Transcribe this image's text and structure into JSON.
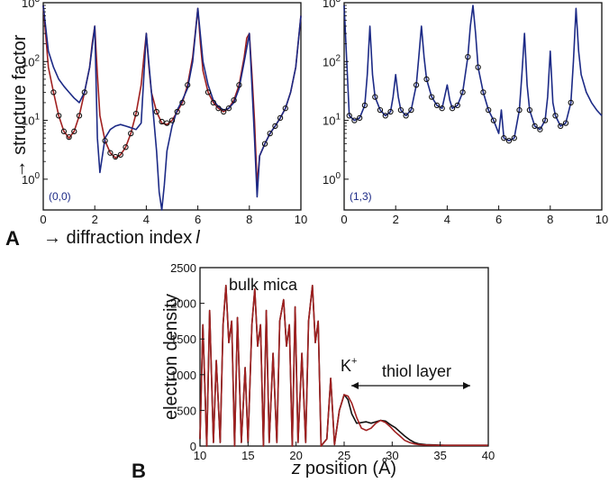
{
  "panel_a_letter": "A",
  "panel_b_letter": "B",
  "shared_ylabel": "→ structure factor",
  "shared_xlabel": "→ diffraction index",
  "shared_xlabel_var": "l",
  "colors": {
    "fit_red": "#a02020",
    "fit_blue": "#1c2a86",
    "data_marker": "#111111",
    "curve_black": "#111111"
  },
  "chart_data": [
    {
      "type": "line",
      "panel": "A-left",
      "annotation": "(0,0)",
      "xlim": [
        0,
        10
      ],
      "ylim": [
        0.3,
        1000
      ],
      "yscale": "log",
      "x_ticks": [
        "0",
        "2",
        "4",
        "6",
        "8",
        "10"
      ],
      "y_ticks": [
        {
          "base": "10",
          "exp": "0"
        },
        {
          "base": "10",
          "exp": "1"
        },
        {
          "base": "10",
          "exp": "2"
        },
        {
          "base": "10",
          "exp": "3"
        }
      ],
      "series": [
        {
          "color": "#a02020",
          "x": [
            0.0,
            0.2,
            0.4,
            0.6,
            0.8,
            1.0,
            1.2,
            1.4,
            1.6,
            1.8,
            1.9,
            2.0,
            2.1,
            2.2,
            2.4,
            2.6,
            2.8,
            3.0,
            3.2,
            3.4,
            3.6,
            3.8,
            3.9,
            4.0,
            4.1,
            4.2,
            4.4,
            4.6,
            4.8,
            5.0,
            5.2,
            5.4,
            5.6,
            5.8,
            5.9,
            6.0,
            6.1,
            6.2,
            6.4,
            6.6,
            6.8,
            7.0,
            7.2,
            7.4,
            7.6,
            7.8,
            7.9,
            8.0,
            8.1,
            8.2,
            8.3,
            8.4,
            8.6,
            8.8,
            9.0,
            9.2,
            9.4,
            9.6,
            9.8,
            10.0
          ],
          "y": [
            900,
            80,
            30,
            12,
            6.5,
            5.0,
            6.5,
            12,
            30,
            80,
            200,
            400,
            60,
            12,
            4.5,
            2.8,
            2.3,
            2.6,
            3.5,
            6,
            13,
            40,
            110,
            300,
            80,
            30,
            14,
            9,
            8.5,
            10,
            14,
            20,
            40,
            120,
            300,
            800,
            200,
            70,
            30,
            20,
            16,
            14,
            16,
            22,
            40,
            120,
            250,
            300,
            60,
            10,
            0.8,
            2.5,
            4,
            6,
            8,
            11,
            16,
            30,
            80,
            600
          ]
        },
        {
          "color": "#1c2a86",
          "x": [
            0.0,
            0.2,
            0.4,
            0.6,
            0.8,
            1.0,
            1.2,
            1.4,
            1.6,
            1.8,
            2.0,
            2.1,
            2.2,
            2.4,
            2.6,
            2.8,
            3.0,
            3.2,
            3.4,
            3.6,
            3.8,
            4.0,
            4.2,
            4.4,
            4.5,
            4.6,
            4.7,
            4.8,
            5.0,
            5.2,
            5.4,
            5.6,
            5.8,
            6.0,
            6.2,
            6.4,
            6.6,
            6.8,
            7.0,
            7.2,
            7.4,
            7.6,
            7.8,
            8.0,
            8.2,
            8.3,
            8.4,
            8.6,
            8.8,
            9.0,
            9.2,
            9.4,
            9.6,
            9.8,
            10.0
          ],
          "y": [
            900,
            150,
            80,
            50,
            38,
            30,
            24,
            20,
            30,
            80,
            400,
            5,
            1.3,
            5,
            7,
            8,
            8.5,
            8,
            7.5,
            7,
            9,
            300,
            30,
            3,
            0.6,
            0.3,
            0.8,
            3,
            8,
            15,
            22,
            35,
            100,
            800,
            100,
            40,
            22,
            17,
            15,
            16,
            20,
            35,
            100,
            300,
            5,
            0.5,
            2.5,
            4,
            6,
            8,
            11,
            16,
            30,
            80,
            600
          ]
        }
      ],
      "data_points": {
        "x": [
          0.4,
          0.6,
          0.8,
          1.0,
          1.2,
          1.4,
          1.6,
          2.4,
          2.6,
          2.8,
          3.0,
          3.2,
          3.4,
          3.6,
          4.4,
          4.6,
          4.8,
          5.0,
          5.2,
          5.4,
          5.6,
          6.4,
          6.6,
          6.8,
          7.0,
          7.2,
          7.4,
          7.6,
          8.6,
          8.8,
          9.0,
          9.2,
          9.4
        ],
        "y": [
          30,
          12,
          6.5,
          5.2,
          6.5,
          12,
          30,
          4.5,
          2.8,
          2.4,
          2.6,
          3.5,
          6,
          13,
          14,
          9.5,
          9,
          10,
          14,
          20,
          40,
          30,
          20,
          16,
          14,
          16,
          22,
          40,
          4,
          6,
          8,
          11,
          16
        ]
      }
    },
    {
      "type": "line",
      "panel": "A-right",
      "annotation": "(1,3)",
      "xlim": [
        0,
        10
      ],
      "ylim": [
        0.3,
        1000
      ],
      "yscale": "log",
      "x_ticks": [
        "0",
        "2",
        "4",
        "6",
        "8",
        "10"
      ],
      "y_ticks": [
        {
          "base": "10",
          "exp": "0"
        },
        {
          "base": "10",
          "exp": "1"
        },
        {
          "base": "10",
          "exp": "2"
        },
        {
          "base": "10",
          "exp": "3"
        }
      ],
      "series": [
        {
          "color": "#1c2a86",
          "x": [
            0.0,
            0.2,
            0.4,
            0.6,
            0.8,
            0.9,
            1.0,
            1.1,
            1.2,
            1.4,
            1.6,
            1.8,
            1.9,
            2.0,
            2.1,
            2.2,
            2.4,
            2.6,
            2.8,
            2.9,
            3.0,
            3.1,
            3.2,
            3.4,
            3.6,
            3.8,
            3.9,
            4.0,
            4.1,
            4.2,
            4.4,
            4.6,
            4.8,
            4.9,
            5.0,
            5.1,
            5.2,
            5.4,
            5.6,
            5.8,
            6.0,
            6.1,
            6.2,
            6.4,
            6.6,
            6.8,
            6.9,
            7.0,
            7.1,
            7.2,
            7.4,
            7.6,
            7.8,
            7.9,
            8.0,
            8.1,
            8.2,
            8.4,
            8.6,
            8.8,
            8.9,
            9.0,
            9.1,
            9.2,
            9.4,
            9.6,
            9.8,
            10.0
          ],
          "y": [
            900,
            12,
            10,
            11,
            18,
            60,
            400,
            60,
            25,
            15,
            12,
            14,
            25,
            60,
            25,
            15,
            12,
            15,
            40,
            120,
            400,
            120,
            50,
            25,
            18,
            16,
            25,
            40,
            22,
            16,
            18,
            30,
            120,
            400,
            900,
            300,
            80,
            30,
            15,
            10,
            6,
            15,
            5,
            4.5,
            5,
            15,
            60,
            300,
            40,
            15,
            8,
            7,
            10,
            25,
            150,
            20,
            12,
            8,
            9,
            20,
            100,
            800,
            150,
            60,
            30,
            20,
            15,
            12
          ]
        }
      ],
      "data_points": {
        "x": [
          0.2,
          0.4,
          0.6,
          0.8,
          1.2,
          1.4,
          1.6,
          1.8,
          2.2,
          2.4,
          2.6,
          2.8,
          3.2,
          3.4,
          3.6,
          3.8,
          4.2,
          4.4,
          4.6,
          4.8,
          5.2,
          5.4,
          5.6,
          5.8,
          6.2,
          6.4,
          6.6,
          6.8,
          7.2,
          7.4,
          7.6,
          7.8,
          8.2,
          8.4,
          8.6,
          8.8
        ],
        "y": [
          12,
          10,
          11,
          18,
          25,
          15,
          12,
          14,
          15,
          12,
          15,
          40,
          50,
          25,
          18,
          16,
          16,
          18,
          30,
          120,
          80,
          30,
          15,
          10,
          5,
          4.5,
          5,
          15,
          15,
          8,
          7,
          10,
          12,
          8,
          9,
          20
        ]
      }
    },
    {
      "type": "line",
      "panel": "B",
      "xlabel": "position (Å)",
      "xlabel_var": "z",
      "ylabel": "electron density",
      "xlim": [
        10,
        40
      ],
      "ylim": [
        0,
        2500
      ],
      "x_ticks": [
        "10",
        "15",
        "20",
        "25",
        "30",
        "35",
        "40"
      ],
      "y_ticks": [
        "0",
        "500",
        "1000",
        "1500",
        "2000",
        "2500"
      ],
      "annotations": [
        "bulk mica",
        "K",
        "+",
        "thiol layer"
      ],
      "series": [
        {
          "color": "#111111",
          "x": [
            10.0,
            10.3,
            10.7,
            11.0,
            11.4,
            11.7,
            12.1,
            12.4,
            12.7,
            13.0,
            13.3,
            13.6,
            13.9,
            14.3,
            14.7,
            15.0,
            15.4,
            15.7,
            16.0,
            16.3,
            16.6,
            16.9,
            17.2,
            17.6,
            18.0,
            18.3,
            18.7,
            19.0,
            19.3,
            19.6,
            19.9,
            20.2,
            20.6,
            21.0,
            21.3,
            21.7,
            22.0,
            22.3,
            22.6,
            22.9,
            23.2,
            23.6,
            24.0,
            24.5,
            25.0,
            25.4,
            25.8,
            26.3,
            26.8,
            27.3,
            27.8,
            28.3,
            28.8,
            29.3,
            29.8,
            30.3,
            30.8,
            31.3,
            31.8,
            32.3,
            32.8,
            33.5,
            34.5,
            35.5,
            36.5,
            37.5,
            38.5,
            40.0
          ],
          "y": [
            100,
            1700,
            0,
            1900,
            50,
            1200,
            50,
            1700,
            2250,
            1450,
            1750,
            0,
            1800,
            50,
            1100,
            50,
            1700,
            2200,
            1400,
            1700,
            0,
            1900,
            50,
            1300,
            50,
            1750,
            2050,
            1400,
            1700,
            0,
            1950,
            50,
            1300,
            50,
            1750,
            2250,
            1450,
            1750,
            0,
            50,
            100,
            950,
            20,
            500,
            720,
            650,
            450,
            320,
            330,
            340,
            320,
            340,
            360,
            350,
            300,
            260,
            200,
            140,
            90,
            50,
            30,
            20,
            15,
            10,
            10,
            10,
            10,
            10
          ]
        },
        {
          "color": "#a02020",
          "x": [
            10.0,
            10.3,
            10.7,
            11.0,
            11.4,
            11.7,
            12.1,
            12.4,
            12.7,
            13.0,
            13.3,
            13.6,
            13.9,
            14.3,
            14.7,
            15.0,
            15.4,
            15.7,
            16.0,
            16.3,
            16.6,
            16.9,
            17.2,
            17.6,
            18.0,
            18.3,
            18.7,
            19.0,
            19.3,
            19.6,
            19.9,
            20.2,
            20.6,
            21.0,
            21.3,
            21.7,
            22.0,
            22.3,
            22.6,
            22.9,
            23.2,
            23.6,
            24.0,
            24.5,
            25.0,
            25.4,
            25.8,
            26.3,
            26.8,
            27.3,
            27.8,
            28.3,
            28.8,
            29.3,
            29.8,
            30.3,
            30.8,
            31.3,
            31.8,
            32.3,
            32.8,
            33.5,
            34.5,
            35.5,
            36.5,
            37.5,
            38.5,
            40.0
          ],
          "y": [
            100,
            1700,
            0,
            1900,
            50,
            1200,
            50,
            1700,
            2250,
            1450,
            1750,
            0,
            1800,
            50,
            1100,
            50,
            1700,
            2200,
            1400,
            1700,
            0,
            1900,
            50,
            1300,
            50,
            1750,
            2050,
            1400,
            1700,
            0,
            1950,
            50,
            1300,
            50,
            1750,
            2250,
            1450,
            1750,
            0,
            50,
            100,
            950,
            20,
            500,
            720,
            700,
            600,
            400,
            250,
            220,
            250,
            320,
            360,
            330,
            270,
            200,
            140,
            80,
            50,
            30,
            20,
            15,
            10,
            10,
            10,
            10,
            10,
            10
          ]
        }
      ]
    }
  ]
}
